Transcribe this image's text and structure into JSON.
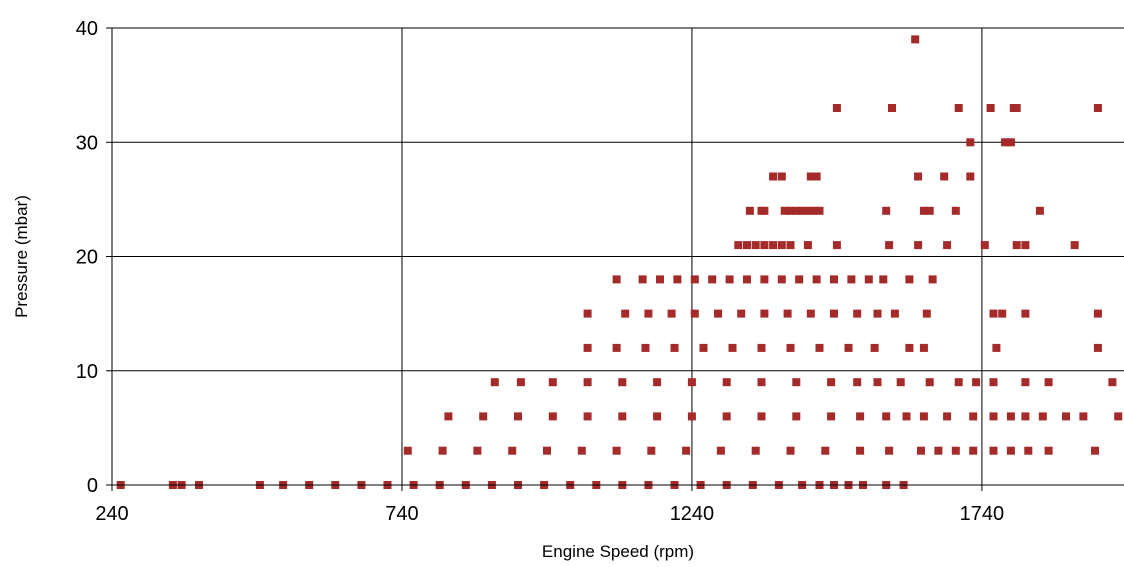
{
  "chart_data": {
    "type": "scatter",
    "title": "",
    "xlabel": "Engine Speed (rpm)",
    "ylabel": "Pressure (mbar)",
    "xlim": [
      240,
      1985
    ],
    "ylim": [
      0,
      40
    ],
    "x_ticks": [
      "240",
      "740",
      "1240",
      "1740"
    ],
    "y_ticks": [
      "0",
      "10",
      "20",
      "30",
      "40"
    ],
    "grid": true,
    "legend": "none",
    "marker_color": "#a52a2a",
    "series": [
      {
        "points": [
          [
            1625,
            39
          ],
          [
            1490,
            33
          ],
          [
            1585,
            33
          ],
          [
            1700,
            33
          ],
          [
            1755,
            33
          ],
          [
            1795,
            33
          ],
          [
            1800,
            33
          ],
          [
            1940,
            33
          ],
          [
            1720,
            30
          ],
          [
            1780,
            30
          ],
          [
            1790,
            30
          ],
          [
            1380,
            27
          ],
          [
            1395,
            27
          ],
          [
            1445,
            27
          ],
          [
            1455,
            27
          ],
          [
            1630,
            27
          ],
          [
            1675,
            27
          ],
          [
            1720,
            27
          ],
          [
            1340,
            24
          ],
          [
            1360,
            24
          ],
          [
            1365,
            24
          ],
          [
            1400,
            24
          ],
          [
            1410,
            24
          ],
          [
            1420,
            24
          ],
          [
            1430,
            24
          ],
          [
            1440,
            24
          ],
          [
            1450,
            24
          ],
          [
            1460,
            24
          ],
          [
            1575,
            24
          ],
          [
            1640,
            24
          ],
          [
            1650,
            24
          ],
          [
            1695,
            24
          ],
          [
            1840,
            24
          ],
          [
            1320,
            21
          ],
          [
            1335,
            21
          ],
          [
            1350,
            21
          ],
          [
            1365,
            21
          ],
          [
            1380,
            21
          ],
          [
            1395,
            21
          ],
          [
            1410,
            21
          ],
          [
            1440,
            21
          ],
          [
            1490,
            21
          ],
          [
            1580,
            21
          ],
          [
            1630,
            21
          ],
          [
            1680,
            21
          ],
          [
            1745,
            21
          ],
          [
            1800,
            21
          ],
          [
            1815,
            21
          ],
          [
            1900,
            21
          ],
          [
            1110,
            18
          ],
          [
            1155,
            18
          ],
          [
            1185,
            18
          ],
          [
            1215,
            18
          ],
          [
            1245,
            18
          ],
          [
            1275,
            18
          ],
          [
            1305,
            18
          ],
          [
            1335,
            18
          ],
          [
            1365,
            18
          ],
          [
            1395,
            18
          ],
          [
            1425,
            18
          ],
          [
            1455,
            18
          ],
          [
            1485,
            18
          ],
          [
            1515,
            18
          ],
          [
            1545,
            18
          ],
          [
            1570,
            18
          ],
          [
            1615,
            18
          ],
          [
            1655,
            18
          ],
          [
            1060,
            15
          ],
          [
            1125,
            15
          ],
          [
            1165,
            15
          ],
          [
            1205,
            15
          ],
          [
            1245,
            15
          ],
          [
            1285,
            15
          ],
          [
            1325,
            15
          ],
          [
            1365,
            15
          ],
          [
            1405,
            15
          ],
          [
            1445,
            15
          ],
          [
            1485,
            15
          ],
          [
            1525,
            15
          ],
          [
            1560,
            15
          ],
          [
            1590,
            15
          ],
          [
            1645,
            15
          ],
          [
            1760,
            15
          ],
          [
            1775,
            15
          ],
          [
            1815,
            15
          ],
          [
            1940,
            15
          ],
          [
            1060,
            12
          ],
          [
            1110,
            12
          ],
          [
            1160,
            12
          ],
          [
            1210,
            12
          ],
          [
            1260,
            12
          ],
          [
            1310,
            12
          ],
          [
            1360,
            12
          ],
          [
            1410,
            12
          ],
          [
            1460,
            12
          ],
          [
            1510,
            12
          ],
          [
            1555,
            12
          ],
          [
            1615,
            12
          ],
          [
            1640,
            12
          ],
          [
            1765,
            12
          ],
          [
            1940,
            12
          ],
          [
            900,
            9
          ],
          [
            945,
            9
          ],
          [
            1000,
            9
          ],
          [
            1060,
            9
          ],
          [
            1120,
            9
          ],
          [
            1180,
            9
          ],
          [
            1240,
            9
          ],
          [
            1300,
            9
          ],
          [
            1360,
            9
          ],
          [
            1420,
            9
          ],
          [
            1480,
            9
          ],
          [
            1525,
            9
          ],
          [
            1560,
            9
          ],
          [
            1600,
            9
          ],
          [
            1650,
            9
          ],
          [
            1700,
            9
          ],
          [
            1730,
            9
          ],
          [
            1760,
            9
          ],
          [
            1815,
            9
          ],
          [
            1855,
            9
          ],
          [
            1965,
            9
          ],
          [
            820,
            6
          ],
          [
            880,
            6
          ],
          [
            940,
            6
          ],
          [
            1000,
            6
          ],
          [
            1060,
            6
          ],
          [
            1120,
            6
          ],
          [
            1180,
            6
          ],
          [
            1240,
            6
          ],
          [
            1300,
            6
          ],
          [
            1360,
            6
          ],
          [
            1420,
            6
          ],
          [
            1480,
            6
          ],
          [
            1530,
            6
          ],
          [
            1575,
            6
          ],
          [
            1610,
            6
          ],
          [
            1640,
            6
          ],
          [
            1680,
            6
          ],
          [
            1725,
            6
          ],
          [
            1760,
            6
          ],
          [
            1790,
            6
          ],
          [
            1815,
            6
          ],
          [
            1845,
            6
          ],
          [
            1885,
            6
          ],
          [
            1915,
            6
          ],
          [
            1975,
            6
          ],
          [
            750,
            3
          ],
          [
            810,
            3
          ],
          [
            870,
            3
          ],
          [
            930,
            3
          ],
          [
            990,
            3
          ],
          [
            1050,
            3
          ],
          [
            1110,
            3
          ],
          [
            1170,
            3
          ],
          [
            1230,
            3
          ],
          [
            1290,
            3
          ],
          [
            1350,
            3
          ],
          [
            1410,
            3
          ],
          [
            1470,
            3
          ],
          [
            1530,
            3
          ],
          [
            1580,
            3
          ],
          [
            1635,
            3
          ],
          [
            1665,
            3
          ],
          [
            1695,
            3
          ],
          [
            1725,
            3
          ],
          [
            1760,
            3
          ],
          [
            1790,
            3
          ],
          [
            1820,
            3
          ],
          [
            1855,
            3
          ],
          [
            1935,
            3
          ],
          [
            255,
            0
          ],
          [
            345,
            0
          ],
          [
            360,
            0
          ],
          [
            390,
            0
          ],
          [
            495,
            0
          ],
          [
            535,
            0
          ],
          [
            580,
            0
          ],
          [
            625,
            0
          ],
          [
            670,
            0
          ],
          [
            715,
            0
          ],
          [
            760,
            0
          ],
          [
            805,
            0
          ],
          [
            850,
            0
          ],
          [
            895,
            0
          ],
          [
            940,
            0
          ],
          [
            985,
            0
          ],
          [
            1030,
            0
          ],
          [
            1075,
            0
          ],
          [
            1120,
            0
          ],
          [
            1165,
            0
          ],
          [
            1210,
            0
          ],
          [
            1255,
            0
          ],
          [
            1300,
            0
          ],
          [
            1345,
            0
          ],
          [
            1390,
            0
          ],
          [
            1430,
            0
          ],
          [
            1460,
            0
          ],
          [
            1485,
            0
          ],
          [
            1510,
            0
          ],
          [
            1535,
            0
          ],
          [
            1575,
            0
          ],
          [
            1605,
            0
          ]
        ]
      }
    ]
  }
}
